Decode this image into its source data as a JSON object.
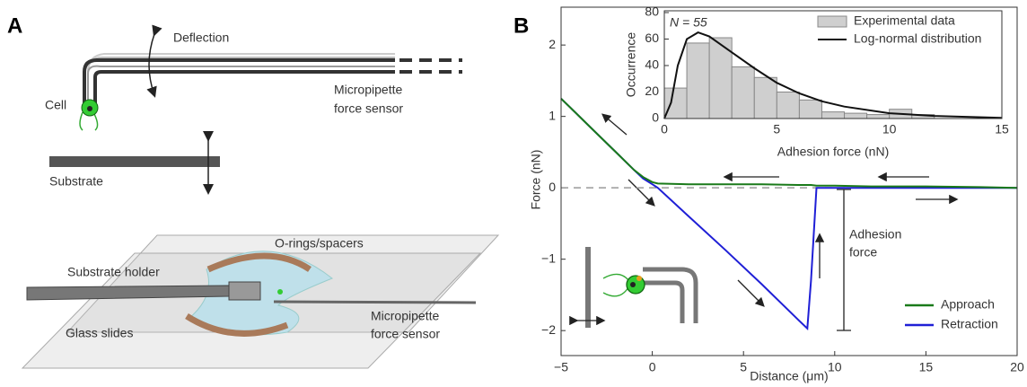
{
  "panel_a": {
    "label": "A",
    "deflection": "Deflection",
    "cell": "Cell",
    "sensor_top": [
      "Micropipette",
      "force sensor"
    ],
    "substrate": "Substrate",
    "orings": "O-rings/spacers",
    "holder": "Substrate holder",
    "glass": "Glass slides",
    "sensor_bottom": [
      "Micropipette",
      "force sensor"
    ]
  },
  "panel_b": {
    "label": "B"
  },
  "chart_data": [
    {
      "type": "line",
      "xlabel": "Distance (μm)",
      "ylabel": "Force (nN)",
      "annotation": [
        "Adhesion",
        "force"
      ],
      "x": [
        -5,
        -4,
        -3,
        -2,
        -1,
        -0.5,
        0,
        0.3,
        2,
        4,
        6,
        8,
        8.5,
        8.7,
        9,
        10,
        12,
        15,
        18,
        20
      ],
      "series": [
        {
          "name": "Retraction",
          "color": "#1f1fd6",
          "values": [
            1.25,
            1.0,
            0.75,
            0.5,
            0.25,
            0.13,
            0.05,
            0,
            -0.4,
            -0.87,
            -1.35,
            -1.85,
            -1.97,
            -1.3,
            0,
            0,
            0,
            0,
            0,
            0
          ]
        },
        {
          "name": "Approach",
          "color": "#1a7a1a",
          "values": [
            1.25,
            1.0,
            0.75,
            0.5,
            0.25,
            0.15,
            0.08,
            0.06,
            0.05,
            0.05,
            0.05,
            0.04,
            0.04,
            0.04,
            0.03,
            0.03,
            0.02,
            0.02,
            0.01,
            0
          ]
        }
      ],
      "xlim": [
        -5,
        20
      ],
      "ylim": [
        -2.35,
        2.53
      ],
      "xticks": [
        {
          "value": -5,
          "label": "−5"
        },
        0,
        5,
        10,
        15,
        20
      ],
      "yticks": [
        {
          "value": -2,
          "label": "−2"
        },
        {
          "value": -1,
          "label": "−1"
        },
        0,
        1,
        2
      ],
      "zero_line": true,
      "legend": "lower right"
    },
    {
      "type": "histogram",
      "xlabel": "Adhesion force (nN)",
      "ylabel": "Occurrence",
      "annotation": "N = 55",
      "bins": [
        0,
        1,
        2,
        3,
        4,
        5,
        6,
        7,
        8,
        9,
        10,
        11,
        12
      ],
      "values": [
        23,
        57,
        61,
        39,
        31,
        20,
        14,
        5,
        4,
        3,
        7,
        3
      ],
      "name": "Experimental data",
      "color": "#cfcfcf",
      "curve": {
        "name": "Log-normal distribution",
        "color": "#111111",
        "x": [
          0,
          0.3,
          0.6,
          1,
          1.5,
          2,
          3,
          4,
          5,
          6,
          7,
          8,
          10,
          12,
          15
        ],
        "values": [
          0,
          12,
          40,
          60,
          65,
          62,
          50,
          38,
          27,
          19,
          13,
          9,
          4,
          2,
          0.5
        ]
      },
      "xlim": [
        0,
        15
      ],
      "ylim": [
        0,
        80
      ],
      "xticks": [
        0,
        5,
        10,
        15
      ],
      "yticks": [
        0,
        20,
        40,
        60,
        80
      ],
      "legend": "upper right"
    }
  ]
}
